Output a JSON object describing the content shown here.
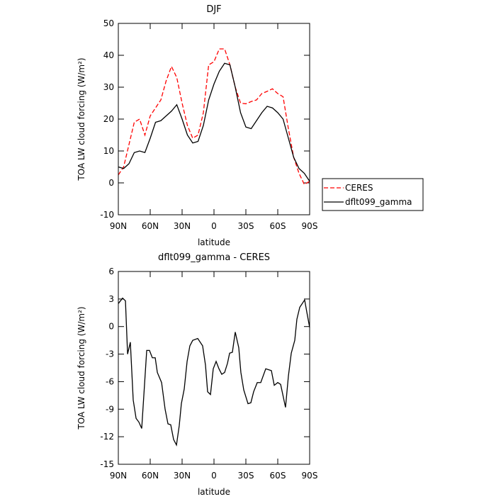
{
  "chart_data": [
    {
      "type": "line",
      "title": "DJF",
      "xlabel": "latitude",
      "ylabel": "TOA LW cloud forcing (W/m²)",
      "x": [
        90,
        85,
        80,
        75,
        70,
        65,
        60,
        55,
        50,
        45,
        40,
        35,
        30,
        25,
        20,
        15,
        10,
        5,
        0,
        -5,
        -10,
        -15,
        -20,
        -25,
        -30,
        -35,
        -40,
        -45,
        -50,
        -55,
        -60,
        -65,
        -70,
        -75,
        -80,
        -85,
        -90
      ],
      "series": [
        {
          "name": "CERES",
          "color": "#ff0000",
          "style": "dashed",
          "values": [
            2.5,
            5,
            12,
            19,
            20,
            15,
            21,
            23.5,
            26,
            32,
            36.5,
            33,
            25,
            18,
            14,
            15,
            22,
            37,
            38,
            42,
            42,
            37,
            30,
            25,
            24.8,
            25.5,
            26,
            28,
            28.7,
            29.5,
            28,
            27,
            17,
            8,
            3,
            -0.5,
            0.5
          ]
        },
        {
          "name": "dflt099_gamma",
          "color": "#000000",
          "style": "solid",
          "values": [
            5,
            4.5,
            6,
            9.5,
            10,
            9.5,
            14,
            19,
            19.5,
            21,
            22.5,
            24.5,
            20,
            15,
            12.5,
            13,
            18,
            26,
            31,
            35,
            37.5,
            37,
            30,
            22,
            17.5,
            17,
            19.5,
            22,
            24,
            23.5,
            22,
            20,
            14,
            8,
            4.5,
            3,
            0.5
          ]
        }
      ],
      "xlim": [
        90,
        -90
      ],
      "xticks": [
        {
          "value": 90,
          "label": "90N"
        },
        {
          "value": 60,
          "label": "60N"
        },
        {
          "value": 30,
          "label": "30N"
        },
        0,
        {
          "value": -30,
          "label": "30S"
        },
        {
          "value": -60,
          "label": "60S"
        },
        {
          "value": -90,
          "label": "90S"
        }
      ],
      "ylim": [
        -10,
        50
      ],
      "yticks": [
        -10,
        0,
        10,
        20,
        30,
        40,
        50
      ],
      "legend": "outside-right"
    },
    {
      "type": "line",
      "title": "dflt099_gamma - CERES",
      "xlabel": "latitude",
      "ylabel": "TOA LW cloud forcing (W/m²)",
      "x": [
        90,
        86,
        83.3,
        81.3,
        78.7,
        76,
        73.3,
        70.7,
        68,
        63.3,
        60.7,
        58,
        55.3,
        53.3,
        49.3,
        46,
        43.3,
        40.7,
        38,
        35.3,
        32.7,
        30.7,
        28,
        25.3,
        22.7,
        20,
        15.3,
        10.7,
        8,
        6,
        3.3,
        0.7,
        -2,
        -4.7,
        -7.3,
        -10,
        -12.7,
        -14.7,
        -17.3,
        -20,
        -23.3,
        -25.3,
        -28,
        -32,
        -34.7,
        -37.3,
        -40.7,
        -44,
        -48.7,
        -54,
        -56.7,
        -60,
        -62.7,
        -67.3,
        -70,
        -72.7,
        -76,
        -78,
        -80.7,
        -85.3,
        -87.3,
        -90
      ],
      "series": [
        {
          "color": "#000000",
          "style": "solid",
          "values": [
            2.5,
            3.1,
            2.8,
            -3,
            -1.7,
            -8,
            -10,
            -10.4,
            -11.1,
            -2.6,
            -2.6,
            -3.4,
            -3.4,
            -5,
            -6.1,
            -9,
            -10.6,
            -10.7,
            -12.3,
            -12.9,
            -10.8,
            -8.4,
            -6.8,
            -3.8,
            -2.1,
            -1.5,
            -1.3,
            -2.1,
            -4.2,
            -7.1,
            -7.4,
            -4.6,
            -3.8,
            -4.6,
            -5.2,
            -5,
            -4,
            -2.9,
            -2.8,
            -0.6,
            -2.3,
            -5,
            -6.9,
            -8.4,
            -8.3,
            -7.1,
            -6.1,
            -6.1,
            -4.6,
            -4.8,
            -6.4,
            -6.1,
            -6.3,
            -8.8,
            -5.4,
            -2.9,
            -1.5,
            0.8,
            2.1,
            2.9,
            1.6,
            -0.1
          ]
        }
      ],
      "xlim": [
        90,
        -90
      ],
      "xticks": [
        {
          "value": 90,
          "label": "90N"
        },
        {
          "value": 60,
          "label": "60N"
        },
        {
          "value": 30,
          "label": "30N"
        },
        0,
        {
          "value": -30,
          "label": "30S"
        },
        {
          "value": -60,
          "label": "60S"
        },
        {
          "value": -90,
          "label": "90S"
        }
      ],
      "ylim": [
        -15,
        6
      ],
      "yticks": [
        -15,
        -12,
        -9,
        -6,
        -3,
        0,
        3,
        6
      ]
    }
  ]
}
